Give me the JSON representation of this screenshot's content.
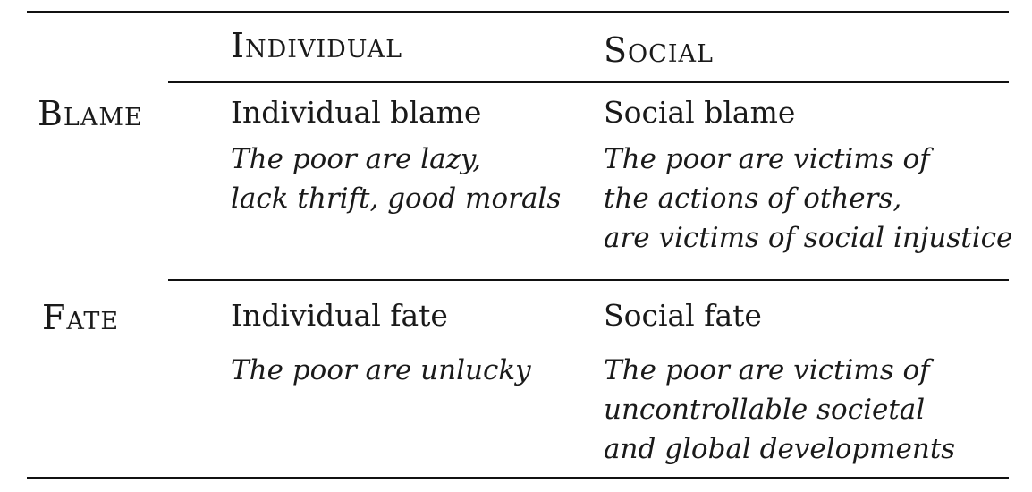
{
  "table": {
    "columns": [
      "Individual",
      "Social"
    ],
    "rows": [
      {
        "label": "Blame",
        "cells": [
          {
            "title": "Individual blame",
            "description": [
              "The poor are lazy,",
              "lack thrift, good morals"
            ]
          },
          {
            "title": "Social blame",
            "description": [
              "The poor are victims of",
              "the actions of others,",
              "are victims of social injustice"
            ]
          }
        ]
      },
      {
        "label": "Fate",
        "cells": [
          {
            "title": "Individual fate",
            "description": [
              "The poor are unlucky"
            ]
          },
          {
            "title": "Social fate",
            "description": [
              "The poor are victims of",
              "uncontrollable societal",
              "and global developments"
            ]
          }
        ]
      }
    ]
  }
}
